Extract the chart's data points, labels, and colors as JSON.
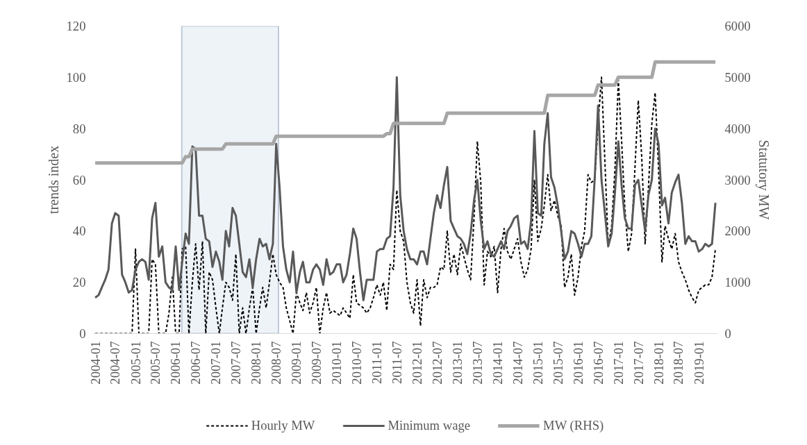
{
  "chart_data": {
    "type": "line",
    "ylabel": "trends index",
    "y2label": "Statutory MW",
    "x": [
      "2004-01",
      "2004-02",
      "2004-03",
      "2004-04",
      "2004-05",
      "2004-06",
      "2004-07",
      "2004-08",
      "2004-09",
      "2004-10",
      "2004-11",
      "2004-12",
      "2005-01",
      "2005-02",
      "2005-03",
      "2005-04",
      "2005-05",
      "2005-06",
      "2005-07",
      "2005-08",
      "2005-09",
      "2005-10",
      "2005-11",
      "2005-12",
      "2006-01",
      "2006-02",
      "2006-03",
      "2006-04",
      "2006-05",
      "2006-06",
      "2006-07",
      "2006-08",
      "2006-09",
      "2006-10",
      "2006-11",
      "2006-12",
      "2007-01",
      "2007-02",
      "2007-03",
      "2007-04",
      "2007-05",
      "2007-06",
      "2007-07",
      "2007-08",
      "2007-09",
      "2007-10",
      "2007-11",
      "2007-12",
      "2008-01",
      "2008-02",
      "2008-03",
      "2008-04",
      "2008-05",
      "2008-06",
      "2008-07",
      "2008-08",
      "2008-09",
      "2008-10",
      "2008-11",
      "2008-12",
      "2009-01",
      "2009-02",
      "2009-03",
      "2009-04",
      "2009-05",
      "2009-06",
      "2009-07",
      "2009-08",
      "2009-09",
      "2009-10",
      "2009-11",
      "2009-12",
      "2010-01",
      "2010-02",
      "2010-03",
      "2010-04",
      "2010-05",
      "2010-06",
      "2010-07",
      "2010-08",
      "2010-09",
      "2010-10",
      "2010-11",
      "2010-12",
      "2011-01",
      "2011-02",
      "2011-03",
      "2011-04",
      "2011-05",
      "2011-06",
      "2011-07",
      "2011-08",
      "2011-09",
      "2011-10",
      "2011-11",
      "2011-12",
      "2012-01",
      "2012-02",
      "2012-03",
      "2012-04",
      "2012-05",
      "2012-06",
      "2012-07",
      "2012-08",
      "2012-09",
      "2012-10",
      "2012-11",
      "2012-12",
      "2013-01",
      "2013-02",
      "2013-03",
      "2013-04",
      "2013-05",
      "2013-06",
      "2013-07",
      "2013-08",
      "2013-09",
      "2013-10",
      "2013-11",
      "2013-12",
      "2014-01",
      "2014-02",
      "2014-03",
      "2014-04",
      "2014-05",
      "2014-06",
      "2014-07",
      "2014-08",
      "2014-09",
      "2014-10",
      "2014-11",
      "2014-12",
      "2015-01",
      "2015-02",
      "2015-03",
      "2015-04",
      "2015-05",
      "2015-06",
      "2015-07",
      "2015-08",
      "2015-09",
      "2015-10",
      "2015-11",
      "2015-12",
      "2016-01",
      "2016-02",
      "2016-03",
      "2016-04",
      "2016-05",
      "2016-06",
      "2016-07",
      "2016-08",
      "2016-09",
      "2016-10",
      "2016-11",
      "2016-12",
      "2017-01",
      "2017-02",
      "2017-03",
      "2017-04",
      "2017-05",
      "2017-06",
      "2017-07",
      "2017-08",
      "2017-09",
      "2017-10",
      "2017-11",
      "2017-12",
      "2018-01",
      "2018-02",
      "2018-03",
      "2018-04",
      "2018-05",
      "2018-06",
      "2018-07",
      "2018-08",
      "2018-09",
      "2018-10",
      "2018-11",
      "2018-12",
      "2019-01",
      "2019-02",
      "2019-03",
      "2019-04",
      "2019-05",
      "2019-06"
    ],
    "series": [
      {
        "name": "Hourly MW",
        "color": "#000000",
        "line_style": "dashed",
        "values": [
          0,
          0,
          0,
          0,
          0,
          0,
          0,
          0,
          0,
          0,
          0,
          0,
          33,
          0,
          0,
          0,
          0,
          29,
          27,
          0,
          0,
          0,
          8,
          22,
          0,
          0,
          33,
          34,
          0,
          20,
          35,
          17,
          36,
          0,
          24,
          21,
          10,
          0,
          10,
          20,
          18,
          13,
          31,
          0,
          10,
          0,
          10,
          18,
          0,
          10,
          18,
          10,
          20,
          31,
          23,
          20,
          18,
          10,
          5,
          0,
          16,
          12,
          9,
          16,
          8,
          12,
          18,
          0,
          10,
          16,
          8,
          9,
          8,
          7,
          10,
          8,
          6,
          23,
          12,
          11,
          10,
          8,
          10,
          14,
          19,
          15,
          20,
          9,
          27,
          25,
          56,
          40,
          36,
          20,
          12,
          8,
          21,
          3,
          21,
          14,
          18,
          18,
          19,
          26,
          25,
          40,
          24,
          31,
          23,
          35,
          30,
          25,
          21,
          45,
          75,
          59,
          19,
          32,
          30,
          34,
          16,
          33,
          41,
          32,
          29,
          33,
          37,
          28,
          22,
          25,
          33,
          60,
          36,
          41,
          50,
          62,
          48,
          52,
          46,
          42,
          18,
          22,
          31,
          15,
          22,
          34,
          40,
          62,
          59,
          60,
          82,
          100,
          67,
          34,
          42,
          64,
          99,
          74,
          49,
          32,
          39,
          65,
          91,
          69,
          35,
          57,
          82,
          94,
          64,
          28,
          42,
          37,
          33,
          39,
          28,
          24,
          21,
          17,
          14,
          12,
          17,
          18,
          19,
          19,
          22,
          33
        ]
      },
      {
        "name": "Minimum wage",
        "color": "#595959",
        "line_style": "solid",
        "values": [
          14,
          15,
          18,
          21,
          25,
          43,
          47,
          46,
          23,
          20,
          16,
          17,
          25,
          28,
          29,
          28,
          21,
          45,
          51,
          30,
          34,
          20,
          18,
          17,
          34,
          17,
          28,
          39,
          35,
          73,
          72,
          46,
          46,
          37,
          36,
          26,
          32,
          28,
          21,
          40,
          34,
          49,
          46,
          35,
          24,
          22,
          29,
          18,
          29,
          37,
          34,
          35,
          29,
          35,
          74,
          57,
          34,
          25,
          20,
          32,
          16,
          24,
          28,
          20,
          20,
          25,
          27,
          25,
          19,
          29,
          23,
          24,
          27,
          27,
          20,
          23,
          31,
          41,
          37,
          24,
          13,
          21,
          21,
          21,
          32,
          33,
          33,
          37,
          38,
          57,
          100,
          54,
          40,
          33,
          29,
          29,
          27,
          32,
          32,
          27,
          37,
          47,
          54,
          49,
          58,
          65,
          44,
          41,
          38,
          37,
          35,
          31,
          39,
          52,
          60,
          44,
          33,
          36,
          31,
          30,
          33,
          36,
          33,
          40,
          42,
          45,
          46,
          35,
          36,
          33,
          44,
          79,
          47,
          46,
          74,
          86,
          61,
          57,
          50,
          40,
          29,
          32,
          40,
          39,
          35,
          30,
          35,
          35,
          38,
          61,
          89,
          60,
          47,
          34,
          39,
          55,
          75,
          57,
          45,
          41,
          41,
          58,
          60,
          50,
          40,
          54,
          60,
          80,
          74,
          50,
          53,
          43,
          55,
          59,
          62,
          51,
          35,
          38,
          36,
          36,
          32,
          33,
          35,
          34,
          35,
          51
        ]
      },
      {
        "name": "MW (RHS)",
        "color": "#a6a6a6",
        "line_style": "solid",
        "axis": "y2",
        "values": [
          3330,
          3330,
          3330,
          3330,
          3330,
          3330,
          3330,
          3330,
          3330,
          3330,
          3330,
          3330,
          3330,
          3330,
          3330,
          3330,
          3330,
          3330,
          3330,
          3330,
          3330,
          3330,
          3330,
          3330,
          3330,
          3330,
          3330,
          3450,
          3450,
          3600,
          3600,
          3600,
          3600,
          3600,
          3600,
          3600,
          3600,
          3600,
          3600,
          3700,
          3700,
          3700,
          3700,
          3700,
          3700,
          3700,
          3700,
          3700,
          3700,
          3700,
          3700,
          3700,
          3700,
          3700,
          3850,
          3850,
          3850,
          3850,
          3850,
          3850,
          3850,
          3850,
          3850,
          3850,
          3850,
          3850,
          3850,
          3850,
          3850,
          3850,
          3850,
          3850,
          3850,
          3850,
          3850,
          3850,
          3850,
          3850,
          3850,
          3850,
          3850,
          3850,
          3850,
          3850,
          3850,
          3850,
          3850,
          3900,
          3900,
          4100,
          4100,
          4100,
          4100,
          4100,
          4100,
          4100,
          4100,
          4100,
          4100,
          4100,
          4100,
          4100,
          4100,
          4100,
          4100,
          4300,
          4300,
          4300,
          4300,
          4300,
          4300,
          4300,
          4300,
          4300,
          4300,
          4300,
          4300,
          4300,
          4300,
          4300,
          4300,
          4300,
          4300,
          4300,
          4300,
          4300,
          4300,
          4300,
          4300,
          4300,
          4300,
          4300,
          4300,
          4300,
          4300,
          4650,
          4650,
          4650,
          4650,
          4650,
          4650,
          4650,
          4650,
          4650,
          4650,
          4650,
          4650,
          4650,
          4650,
          4650,
          4850,
          4850,
          4850,
          4850,
          4850,
          4850,
          5000,
          5000,
          5000,
          5000,
          5000,
          5000,
          5000,
          5000,
          5000,
          5000,
          5000,
          5300,
          5300,
          5300,
          5300,
          5300,
          5300,
          5300,
          5300,
          5300,
          5300,
          5300,
          5300,
          5300,
          5300,
          5300,
          5300,
          5300,
          5300,
          5300
        ]
      }
    ],
    "xlim": [
      "2003-12-16",
      "2019-06-16"
    ],
    "xticks": [
      "2004-01",
      "2004-07",
      "2005-01",
      "2005-07",
      "2006-01",
      "2006-07",
      "2007-01",
      "2007-07",
      "2008-01",
      "2008-07",
      "2009-01",
      "2009-07",
      "2010-01",
      "2010-07",
      "2011-01",
      "2011-07",
      "2012-01",
      "2012-07",
      "2013-01",
      "2013-07",
      "2014-01",
      "2014-07",
      "2015-01",
      "2015-07",
      "2016-01",
      "2016-07",
      "2017-01",
      "2017-07",
      "2018-01",
      "2018-07",
      "2019-01"
    ],
    "ylim": [
      0,
      120
    ],
    "yticks": [
      0,
      20,
      40,
      60,
      80,
      100,
      120
    ],
    "y2lim": [
      0,
      6000
    ],
    "y2ticks": [
      0,
      1000,
      2000,
      3000,
      4000,
      5000,
      6000
    ],
    "bands": [
      {
        "axis": "x",
        "from": "2006-02-25",
        "to": "2008-07-22",
        "color": "#eef3f8"
      }
    ],
    "grid": false,
    "legend": "bottom"
  }
}
